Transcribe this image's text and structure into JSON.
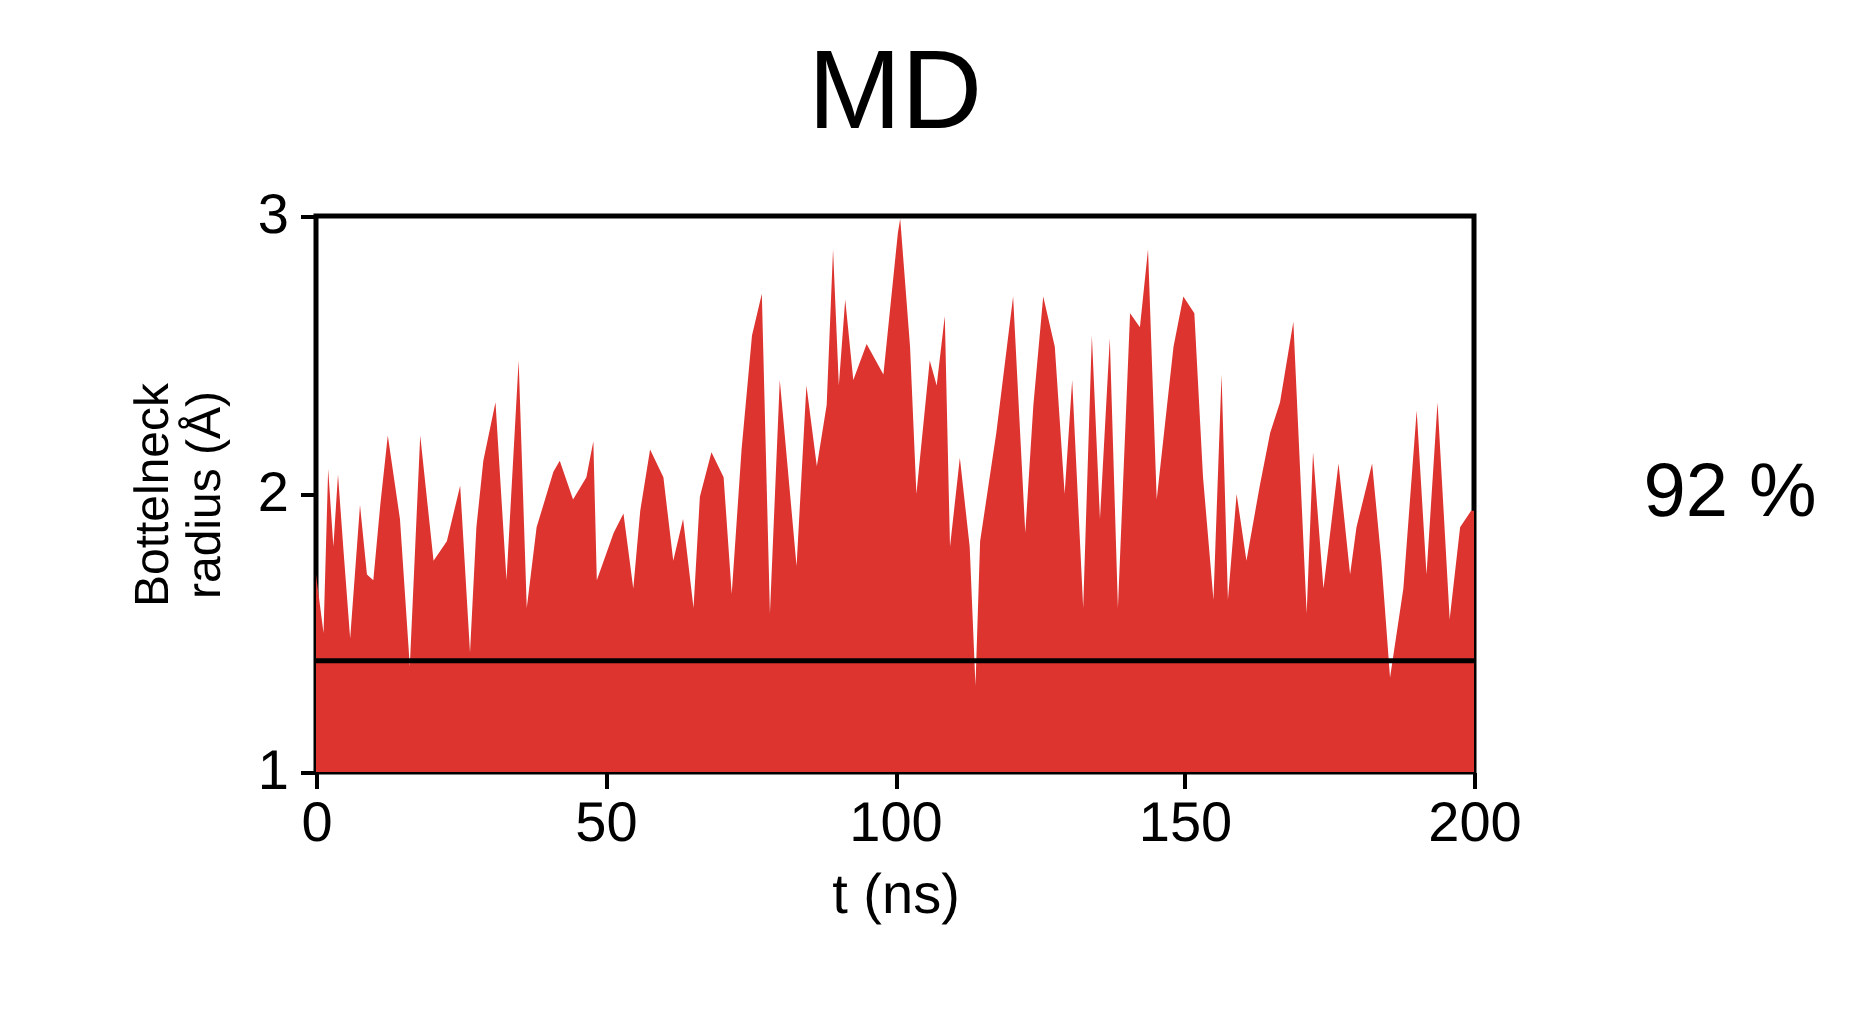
{
  "chart_data": {
    "type": "area",
    "title": "MD",
    "xlabel": "t (ns)",
    "ylabel": "Bottelneck radius (Å)",
    "x": [
      0,
      1.3,
      2.1,
      3.0,
      3.8,
      4.7,
      5.9,
      7.6,
      8.8,
      9.9,
      11.1,
      12.4,
      14.5,
      16.2,
      18.0,
      20.3,
      22.6,
      24.9,
      26.6,
      27.7,
      28.9,
      31.0,
      32.9,
      35.0,
      36.4,
      38.1,
      41.0,
      42.1,
      44.4,
      46.7,
      47.9,
      48.5,
      51.4,
      53.1,
      54.8,
      56.0,
      57.7,
      60.0,
      61.7,
      63.4,
      65.2,
      66.3,
      68.3,
      70.4,
      71.8,
      73.5,
      75.3,
      77.0,
      78.4,
      80.1,
      83.0,
      84.7,
      86.5,
      88.2,
      89.3,
      90.3,
      91.4,
      92.8,
      95.1,
      98.0,
      100.5,
      100.9,
      102.6,
      103.7,
      106.0,
      107.2,
      108.6,
      109.5,
      111.2,
      112.9,
      113.9,
      114.7,
      117.5,
      120.4,
      122.5,
      123.9,
      125.6,
      127.6,
      129.3,
      130.6,
      132.5,
      134.0,
      135.4,
      137.1,
      138.5,
      140.6,
      142.3,
      143.7,
      145.2,
      148.1,
      149.8,
      151.7,
      153.2,
      155.0,
      156.4,
      157.5,
      159.0,
      160.7,
      163.0,
      164.8,
      166.5,
      168.8,
      171.1,
      172.2,
      174.0,
      176.6,
      178.6,
      179.7,
      182.4,
      184.0,
      185.5,
      187.8,
      190.1,
      191.8,
      193.7,
      195.8,
      197.6,
      199.5,
      200
    ],
    "series": [
      {
        "color": "#dd3430",
        "values": [
          1.71,
          1.5,
          2.09,
          1.81,
          2.07,
          1.81,
          1.48,
          1.96,
          1.71,
          1.69,
          1.96,
          2.21,
          1.91,
          1.38,
          2.21,
          1.76,
          1.83,
          2.03,
          1.43,
          1.88,
          2.12,
          2.33,
          1.69,
          2.48,
          1.59,
          1.88,
          2.08,
          2.12,
          1.98,
          2.06,
          2.19,
          1.69,
          1.86,
          1.93,
          1.66,
          1.94,
          2.16,
          2.06,
          1.76,
          1.91,
          1.59,
          1.99,
          2.15,
          2.06,
          1.64,
          2.16,
          2.57,
          2.72,
          1.57,
          2.41,
          1.74,
          2.39,
          2.1,
          2.32,
          2.88,
          2.39,
          2.7,
          2.41,
          2.54,
          2.43,
          2.94,
          2.99,
          2.53,
          2.0,
          2.48,
          2.39,
          2.64,
          1.81,
          2.13,
          1.81,
          1.31,
          1.83,
          2.22,
          2.71,
          1.86,
          2.32,
          2.71,
          2.53,
          2.0,
          2.41,
          1.59,
          2.57,
          1.91,
          2.56,
          1.59,
          2.65,
          2.6,
          2.88,
          1.98,
          2.53,
          2.71,
          2.65,
          2.06,
          1.62,
          2.43,
          1.62,
          2.0,
          1.76,
          2.03,
          2.22,
          2.33,
          2.62,
          1.57,
          2.15,
          1.66,
          2.11,
          1.71,
          1.88,
          2.11,
          1.76,
          1.34,
          1.66,
          2.3,
          1.71,
          2.33,
          1.55,
          1.88,
          1.94,
          1.94
        ]
      }
    ],
    "xlim": [
      0,
      200
    ],
    "xticks": [
      0,
      50,
      100,
      150,
      200
    ],
    "ylim": [
      1,
      3
    ],
    "yticks": [
      1,
      2,
      3
    ],
    "ref_lines": [
      {
        "axis": "y",
        "value": 1.4,
        "color": "#000000"
      }
    ],
    "annotations": [
      "92 %"
    ]
  }
}
